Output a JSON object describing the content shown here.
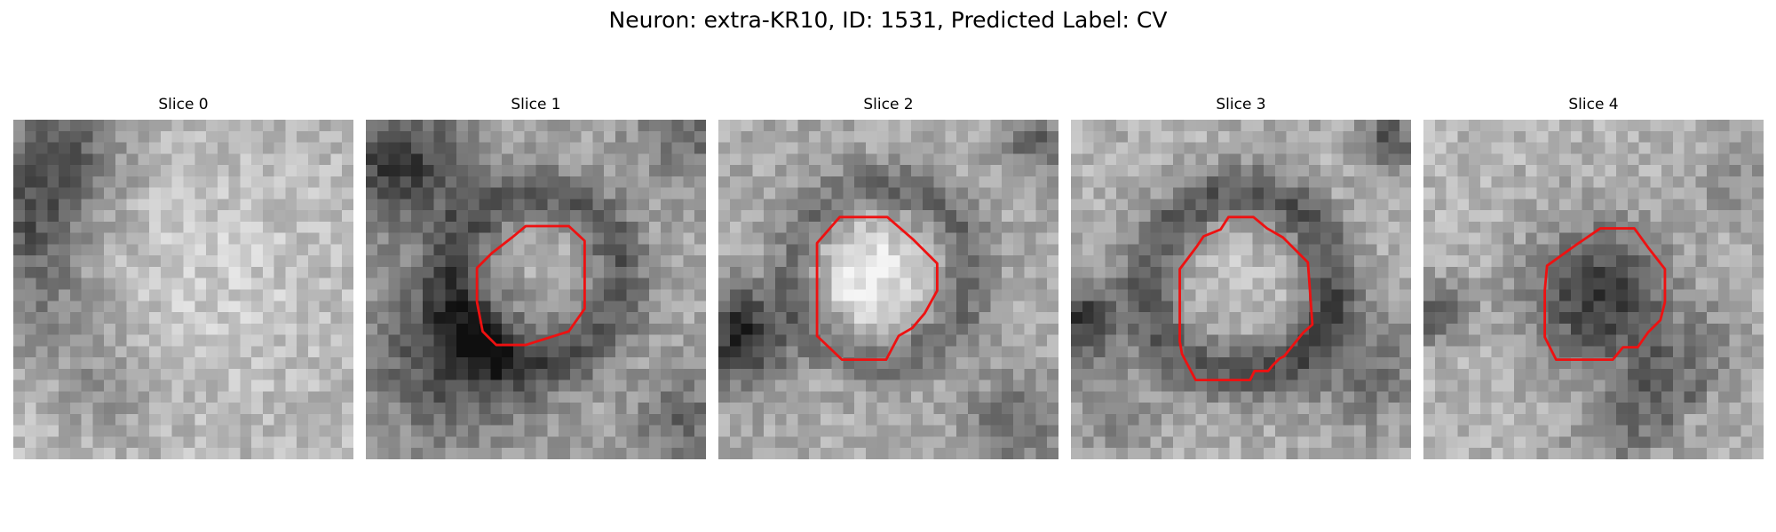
{
  "figure": {
    "title": "Neuron: extra-KR10, ID: 1531, Predicted Label: CV",
    "grid_size": 30,
    "contour_color": "#ee1111",
    "slices": [
      {
        "label": "Slice 0",
        "has_contour": false
      },
      {
        "label": "Slice 1",
        "has_contour": true
      },
      {
        "label": "Slice 2",
        "has_contour": true
      },
      {
        "label": "Slice 3",
        "has_contour": true
      },
      {
        "label": "Slice 4",
        "has_contour": true
      }
    ]
  }
}
